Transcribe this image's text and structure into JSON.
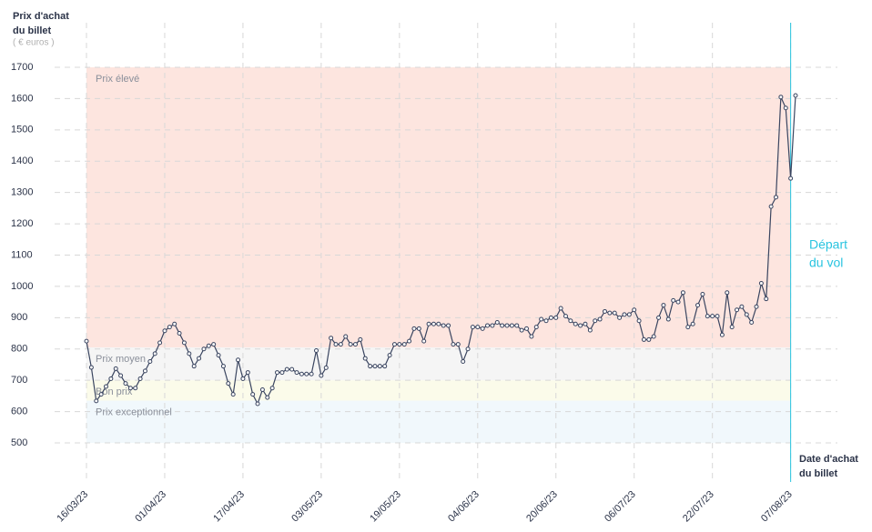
{
  "chart_data": {
    "type": "line",
    "y_label": [
      "Prix d'achat",
      "du billet"
    ],
    "y_unit": "( € euros )",
    "x_label": [
      "Date d'achat",
      "du billet"
    ],
    "departure": {
      "date": "2023-08-07",
      "label": [
        "Départ",
        "du vol"
      ],
      "color": "#29c4e0"
    },
    "bands": [
      {
        "name": "Prix élevé",
        "from": 805,
        "to": 1700,
        "color": "#fde5df"
      },
      {
        "name": "Prix moyen",
        "from": 700,
        "to": 805,
        "color": "#f5f5f5"
      },
      {
        "name": "Bon prix",
        "from": 635,
        "to": 700,
        "color": "#fbfbea"
      },
      {
        "name": "Prix exceptionnel",
        "from": 500,
        "to": 635,
        "color": "#f1f8fc"
      }
    ],
    "xlim": [
      "2023-03-16",
      "2023-08-08"
    ],
    "xticks": [
      {
        "value": "2023-03-16",
        "label": "16/03/23"
      },
      {
        "value": "2023-04-01",
        "label": "01/04/23"
      },
      {
        "value": "2023-04-17",
        "label": "17/04/23"
      },
      {
        "value": "2023-05-03",
        "label": "03/05/23"
      },
      {
        "value": "2023-05-19",
        "label": "19/05/23"
      },
      {
        "value": "2023-06-04",
        "label": "04/06/23"
      },
      {
        "value": "2023-06-20",
        "label": "20/06/23"
      },
      {
        "value": "2023-07-06",
        "label": "06/07/23"
      },
      {
        "value": "2023-07-22",
        "label": "22/07/23"
      },
      {
        "value": "2023-08-07",
        "label": "07/08/23"
      }
    ],
    "ylim": [
      500,
      1700
    ],
    "yticks": [
      500,
      600,
      700,
      800,
      900,
      1000,
      1100,
      1200,
      1300,
      1400,
      1500,
      1600,
      1700
    ],
    "grid": true,
    "series": [
      {
        "color": "#3a4560",
        "x": [
          "2023-03-16",
          "2023-03-17",
          "2023-03-18",
          "2023-03-19",
          "2023-03-20",
          "2023-03-21",
          "2023-03-22",
          "2023-03-23",
          "2023-03-24",
          "2023-03-25",
          "2023-03-26",
          "2023-03-27",
          "2023-03-28",
          "2023-03-29",
          "2023-03-30",
          "2023-03-31",
          "2023-04-01",
          "2023-04-02",
          "2023-04-03",
          "2023-04-04",
          "2023-04-05",
          "2023-04-06",
          "2023-04-07",
          "2023-04-08",
          "2023-04-09",
          "2023-04-10",
          "2023-04-11",
          "2023-04-12",
          "2023-04-13",
          "2023-04-14",
          "2023-04-15",
          "2023-04-16",
          "2023-04-17",
          "2023-04-18",
          "2023-04-19",
          "2023-04-20",
          "2023-04-21",
          "2023-04-22",
          "2023-04-23",
          "2023-04-24",
          "2023-04-25",
          "2023-04-26",
          "2023-04-27",
          "2023-04-28",
          "2023-04-29",
          "2023-04-30",
          "2023-05-01",
          "2023-05-02",
          "2023-05-03",
          "2023-05-04",
          "2023-05-05",
          "2023-05-06",
          "2023-05-07",
          "2023-05-08",
          "2023-05-09",
          "2023-05-10",
          "2023-05-11",
          "2023-05-12",
          "2023-05-13",
          "2023-05-14",
          "2023-05-15",
          "2023-05-16",
          "2023-05-17",
          "2023-05-18",
          "2023-05-19",
          "2023-05-20",
          "2023-05-21",
          "2023-05-22",
          "2023-05-23",
          "2023-05-24",
          "2023-05-25",
          "2023-05-26",
          "2023-05-27",
          "2023-05-28",
          "2023-05-29",
          "2023-05-30",
          "2023-05-31",
          "2023-06-01",
          "2023-06-02",
          "2023-06-03",
          "2023-06-04",
          "2023-06-05",
          "2023-06-06",
          "2023-06-07",
          "2023-06-08",
          "2023-06-09",
          "2023-06-10",
          "2023-06-11",
          "2023-06-12",
          "2023-06-13",
          "2023-06-14",
          "2023-06-15",
          "2023-06-16",
          "2023-06-17",
          "2023-06-18",
          "2023-06-19",
          "2023-06-20",
          "2023-06-21",
          "2023-06-22",
          "2023-06-23",
          "2023-06-24",
          "2023-06-25",
          "2023-06-26",
          "2023-06-27",
          "2023-06-28",
          "2023-06-29",
          "2023-06-30",
          "2023-07-01",
          "2023-07-02",
          "2023-07-03",
          "2023-07-04",
          "2023-07-05",
          "2023-07-06",
          "2023-07-07",
          "2023-07-08",
          "2023-07-09",
          "2023-07-10",
          "2023-07-11",
          "2023-07-12",
          "2023-07-13",
          "2023-07-14",
          "2023-07-15",
          "2023-07-16",
          "2023-07-17",
          "2023-07-18",
          "2023-07-19",
          "2023-07-20",
          "2023-07-21",
          "2023-07-22",
          "2023-07-23",
          "2023-07-24",
          "2023-07-25",
          "2023-07-26",
          "2023-07-27",
          "2023-07-28",
          "2023-07-29",
          "2023-07-30",
          "2023-07-31",
          "2023-08-01",
          "2023-08-02",
          "2023-08-03",
          "2023-08-04",
          "2023-08-05",
          "2023-08-06",
          "2023-08-07",
          "2023-08-08"
        ],
        "values": [
          825,
          741,
          634,
          655,
          680,
          705,
          737,
          715,
          690,
          675,
          675,
          705,
          730,
          760,
          785,
          820,
          858,
          870,
          880,
          850,
          820,
          785,
          745,
          770,
          800,
          810,
          815,
          780,
          745,
          690,
          655,
          765,
          705,
          725,
          655,
          625,
          670,
          645,
          675,
          725,
          725,
          735,
          735,
          725,
          720,
          720,
          720,
          795,
          715,
          740,
          835,
          815,
          815,
          840,
          815,
          815,
          830,
          770,
          745,
          745,
          745,
          745,
          780,
          815,
          815,
          815,
          825,
          865,
          865,
          825,
          880,
          880,
          880,
          875,
          875,
          815,
          815,
          760,
          800,
          870,
          870,
          865,
          875,
          875,
          885,
          875,
          875,
          875,
          875,
          860,
          865,
          840,
          870,
          895,
          890,
          900,
          900,
          930,
          905,
          890,
          880,
          875,
          880,
          860,
          890,
          895,
          920,
          915,
          915,
          900,
          910,
          910,
          925,
          890,
          830,
          830,
          840,
          900,
          940,
          895,
          955,
          950,
          980,
          870,
          880,
          940,
          975,
          905,
          905,
          905,
          845,
          980,
          870,
          925,
          935,
          910,
          885,
          935,
          1010,
          960,
          1255,
          1285,
          1605,
          1570,
          1345,
          1610
        ]
      }
    ]
  }
}
